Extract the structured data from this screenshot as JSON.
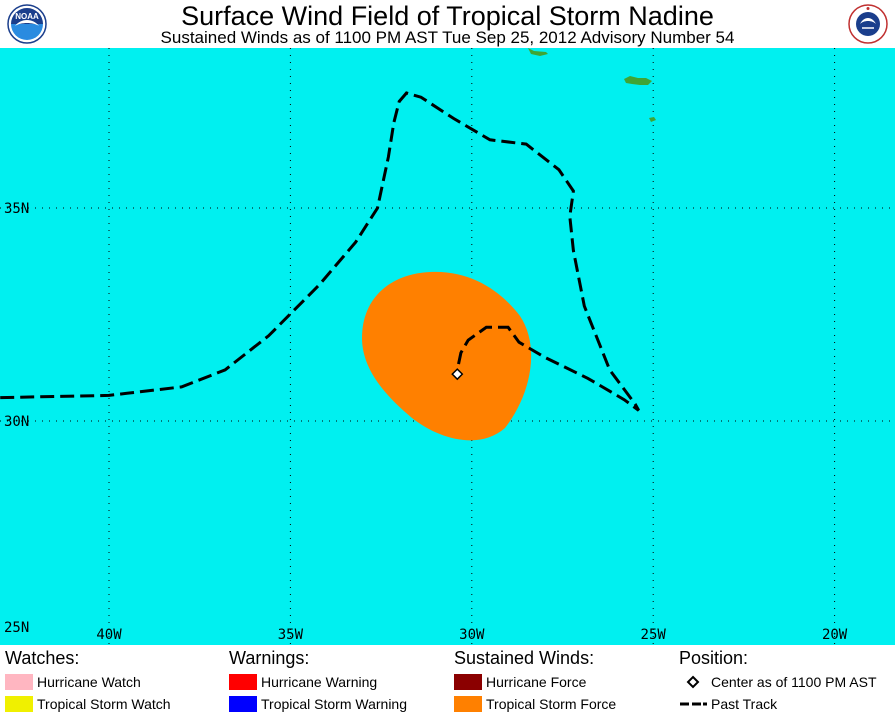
{
  "header": {
    "title": "Surface Wind Field of Tropical Storm Nadine",
    "subtitle": "Sustained Winds as of 1100 PM AST Tue Sep 25, 2012    Advisory Number 54"
  },
  "logos": {
    "left": {
      "name": "noaa-logo",
      "text": "NOAA"
    },
    "right": {
      "name": "nws-logo",
      "text": "NATIONAL WEATHER SERVICE"
    }
  },
  "map": {
    "ocean_color": "#00f0f0",
    "land_color": "#3fa535",
    "wind_field_color": "#ff8000",
    "lat_labels": [
      "35N",
      "30N",
      "25N"
    ],
    "lon_labels": [
      "40W",
      "35W",
      "30W",
      "25W",
      "20W"
    ],
    "storm_center": {
      "lat": 31.1,
      "lon": 30.4
    },
    "past_track": [
      [
        30.55,
        43.0
      ],
      [
        30.6,
        40.0
      ],
      [
        30.8,
        38.0
      ],
      [
        31.2,
        36.8
      ],
      [
        32.0,
        35.6
      ],
      [
        33.2,
        34.2
      ],
      [
        34.2,
        33.2
      ],
      [
        35.0,
        32.6
      ],
      [
        36.2,
        32.3
      ],
      [
        37.0,
        32.15
      ],
      [
        37.5,
        32.0
      ],
      [
        37.7,
        31.8
      ],
      [
        37.6,
        31.4
      ],
      [
        37.1,
        30.5
      ],
      [
        36.6,
        29.5
      ],
      [
        36.5,
        28.5
      ],
      [
        35.9,
        27.6
      ],
      [
        35.4,
        27.2
      ],
      [
        34.8,
        27.3
      ],
      [
        34.0,
        27.2
      ],
      [
        32.7,
        26.9
      ],
      [
        31.2,
        26.2
      ],
      [
        30.4,
        25.5
      ],
      [
        30.25,
        25.4
      ],
      [
        30.5,
        25.8
      ],
      [
        31.0,
        26.8
      ],
      [
        31.5,
        28.0
      ],
      [
        31.85,
        28.7
      ],
      [
        32.2,
        29.0
      ],
      [
        32.2,
        29.6
      ],
      [
        31.9,
        30.1
      ],
      [
        31.6,
        30.3
      ],
      [
        31.2,
        30.4
      ]
    ]
  },
  "legend": {
    "watches": {
      "heading": "Watches:",
      "items": [
        {
          "label": "Hurricane Watch",
          "color": "#ffb6c1"
        },
        {
          "label": "Tropical Storm Watch",
          "color": "#f0f000"
        }
      ]
    },
    "warnings": {
      "heading": "Warnings:",
      "items": [
        {
          "label": "Hurricane Warning",
          "color": "#ff0000"
        },
        {
          "label": "Tropical Storm Warning",
          "color": "#0000ff"
        }
      ]
    },
    "sustained_winds": {
      "heading": "Sustained Winds:",
      "items": [
        {
          "label": "Hurricane Force",
          "color": "#8b0000"
        },
        {
          "label": "Tropical Storm Force",
          "color": "#ff8000"
        }
      ]
    },
    "position": {
      "heading": "Position:",
      "items": [
        {
          "label": "Center as of 1100 PM AST",
          "icon": "diamond-icon"
        },
        {
          "label": "Past Track",
          "icon": "dashed-line-icon"
        }
      ]
    }
  }
}
